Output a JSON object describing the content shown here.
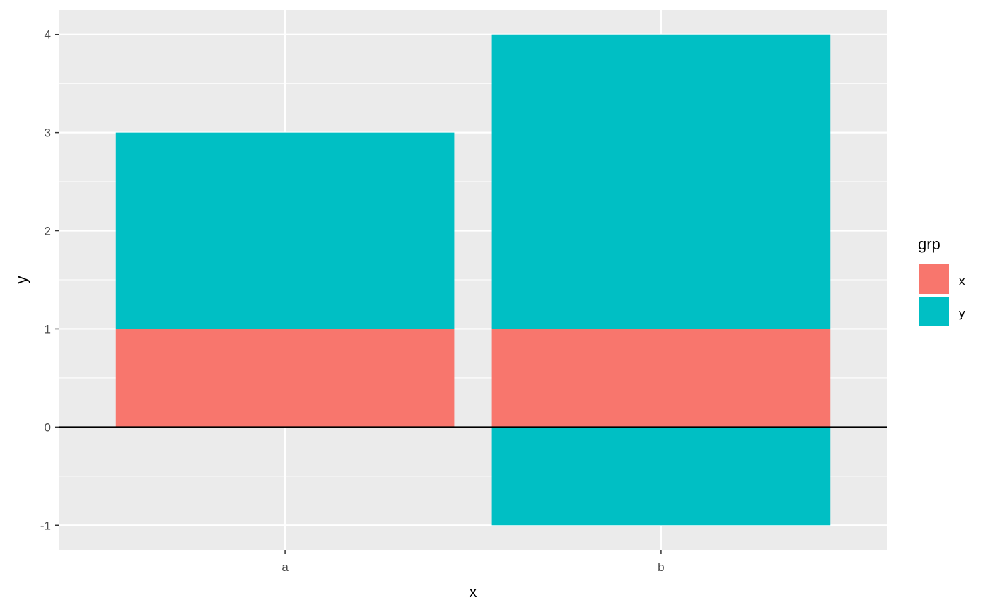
{
  "chart_data": {
    "type": "bar",
    "stacked": true,
    "categories": [
      "a",
      "b"
    ],
    "series": [
      {
        "name": "x",
        "color": "#F8766D",
        "values": [
          1,
          1
        ]
      },
      {
        "name": "y",
        "color": "#00BFC4",
        "values": [
          2,
          3
        ]
      },
      {
        "name": "y",
        "color": "#00BFC4",
        "values": [
          0,
          -1
        ]
      }
    ],
    "xlabel": "x",
    "ylabel": "y",
    "ylim": [
      -1.25,
      4.25
    ],
    "yticks": [
      -1,
      0,
      1,
      2,
      3,
      4
    ],
    "ytick_labels": [
      "-1",
      "0",
      "1",
      "2",
      "3",
      "4"
    ],
    "grid": true,
    "hline": 0,
    "legend": {
      "title": "grp",
      "position": "right",
      "entries": [
        {
          "label": "x",
          "color": "#F8766D"
        },
        {
          "label": "y",
          "color": "#00BFC4"
        }
      ]
    },
    "panel_background": "#EBEBEB",
    "grid_color": "#FFFFFF"
  }
}
